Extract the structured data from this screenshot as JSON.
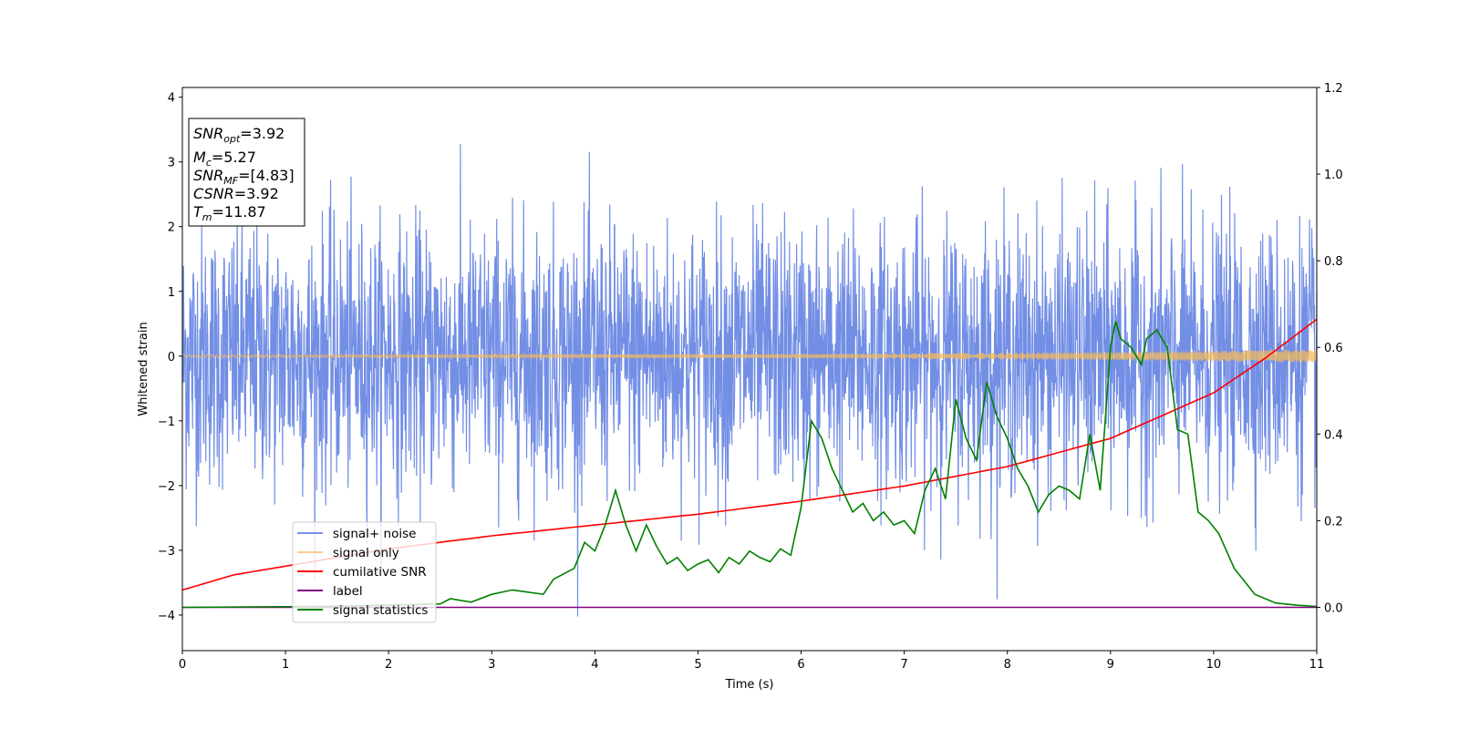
{
  "chart_data": {
    "type": "line",
    "xlabel": "Time (s)",
    "ylabel": "Whitened strain",
    "xlim": [
      0,
      11
    ],
    "ylim": [
      -4.55,
      4.15
    ],
    "y2lim": [
      -0.1,
      1.2
    ],
    "xticks": [
      "0",
      "1",
      "2",
      "3",
      "4",
      "5",
      "6",
      "7",
      "8",
      "9",
      "10",
      "11"
    ],
    "yticks": [
      "4",
      "3",
      "2",
      "1",
      "0",
      "−1",
      "−2",
      "−3",
      "−4"
    ],
    "y2ticks": [
      "0.0",
      "0.2",
      "0.4",
      "0.6",
      "0.8",
      "1.0",
      "1.2"
    ],
    "legend_position": "lower-left",
    "grid": false,
    "stats_box": [
      {
        "name": "SNR",
        "sub": "opt",
        "value": "=3.92"
      },
      {
        "name": "M",
        "sub": "c",
        "value": "=5.27"
      },
      {
        "name": "SNR",
        "sub": "MF",
        "value": "=[4.83]"
      },
      {
        "name": "CSNR",
        "sub": "",
        "value": "=3.92"
      },
      {
        "name": "T",
        "sub": "m",
        "value": "=11.87"
      }
    ],
    "series": [
      {
        "name": "signal+ noise",
        "axis": "left",
        "color": "#6a88e4",
        "style": "noise",
        "sigma": 1.0,
        "envelope_approx": [
          -2.6,
          3.7
        ],
        "n_points": 3000
      },
      {
        "name": "signal only",
        "axis": "left",
        "color": "#f5b95a",
        "style": "chirp",
        "amplitude_start": 0.02,
        "amplitude_end": 0.1
      },
      {
        "name": "cumilative SNR",
        "axis": "right",
        "color": "#ff0000",
        "x": [
          0,
          0.5,
          1,
          2,
          3,
          4,
          5,
          6,
          7,
          8,
          9,
          10,
          10.5,
          11
        ],
        "y": [
          0.04,
          0.075,
          0.095,
          0.135,
          0.165,
          0.19,
          0.215,
          0.245,
          0.28,
          0.325,
          0.39,
          0.495,
          0.575,
          0.665
        ]
      },
      {
        "name": "label",
        "axis": "right",
        "color": "#800080",
        "x": [
          0,
          11
        ],
        "y": [
          0,
          0
        ]
      },
      {
        "name": "signal statistics",
        "axis": "right",
        "color": "#008000",
        "x": [
          0,
          1.3,
          2.0,
          2.5,
          2.6,
          2.8,
          3.0,
          3.2,
          3.5,
          3.6,
          3.8,
          3.9,
          4.0,
          4.1,
          4.2,
          4.3,
          4.4,
          4.5,
          4.6,
          4.7,
          4.8,
          4.9,
          5.0,
          5.1,
          5.2,
          5.3,
          5.4,
          5.5,
          5.6,
          5.7,
          5.8,
          5.9,
          6.0,
          6.1,
          6.2,
          6.3,
          6.4,
          6.5,
          6.6,
          6.7,
          6.8,
          6.9,
          7.0,
          7.1,
          7.2,
          7.3,
          7.4,
          7.5,
          7.6,
          7.7,
          7.8,
          7.9,
          8.0,
          8.1,
          8.2,
          8.3,
          8.4,
          8.5,
          8.6,
          8.7,
          8.8,
          8.9,
          9.0,
          9.05,
          9.1,
          9.2,
          9.3,
          9.35,
          9.45,
          9.55,
          9.65,
          9.75,
          9.85,
          9.95,
          10.05,
          10.2,
          10.4,
          10.6,
          10.8,
          11.0
        ],
        "y": [
          0,
          0.002,
          0.005,
          0.008,
          0.02,
          0.012,
          0.03,
          0.04,
          0.03,
          0.065,
          0.09,
          0.15,
          0.13,
          0.19,
          0.27,
          0.19,
          0.13,
          0.19,
          0.14,
          0.1,
          0.115,
          0.085,
          0.1,
          0.11,
          0.08,
          0.115,
          0.1,
          0.13,
          0.115,
          0.105,
          0.135,
          0.12,
          0.23,
          0.43,
          0.39,
          0.32,
          0.27,
          0.22,
          0.24,
          0.2,
          0.22,
          0.19,
          0.2,
          0.17,
          0.27,
          0.32,
          0.25,
          0.48,
          0.39,
          0.34,
          0.52,
          0.44,
          0.39,
          0.32,
          0.28,
          0.22,
          0.26,
          0.28,
          0.27,
          0.25,
          0.4,
          0.27,
          0.6,
          0.66,
          0.62,
          0.6,
          0.56,
          0.62,
          0.64,
          0.6,
          0.41,
          0.4,
          0.22,
          0.2,
          0.17,
          0.09,
          0.03,
          0.01,
          0.005,
          0.002
        ]
      }
    ]
  }
}
